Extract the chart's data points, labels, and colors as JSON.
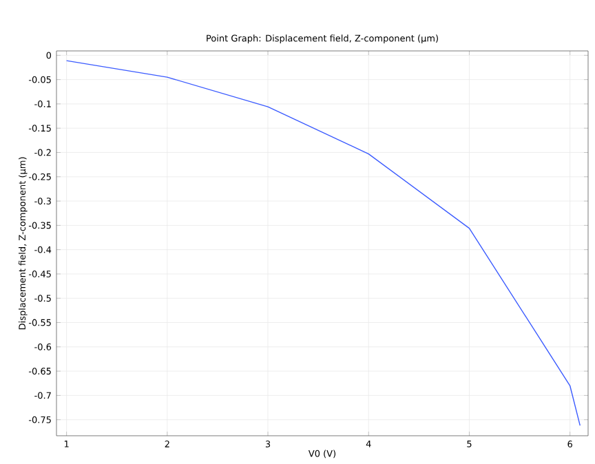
{
  "chart_data": {
    "type": "line",
    "title": "Point Graph: Displacement field, Z-component (µm)",
    "xlabel": "V0 (V)",
    "ylabel": "Displacement field, Z-component (µm)",
    "x": [
      1,
      2,
      3,
      4,
      5,
      6,
      6.1
    ],
    "series": [
      {
        "color": "#3b5bff",
        "values": [
          -0.011,
          -0.045,
          -0.106,
          -0.203,
          -0.356,
          -0.68,
          -0.762
        ]
      }
    ],
    "xlim": [
      0.9,
      6.18
    ],
    "ylim": [
      -0.783,
      0.009
    ],
    "xticks": [
      1,
      2,
      3,
      4,
      5,
      6
    ],
    "yticks": [
      0,
      -0.05,
      -0.1,
      -0.15,
      -0.2,
      -0.25,
      -0.3,
      -0.35,
      -0.4,
      -0.45,
      -0.5,
      -0.55,
      -0.6,
      -0.65,
      -0.7,
      -0.75
    ],
    "grid": true
  }
}
